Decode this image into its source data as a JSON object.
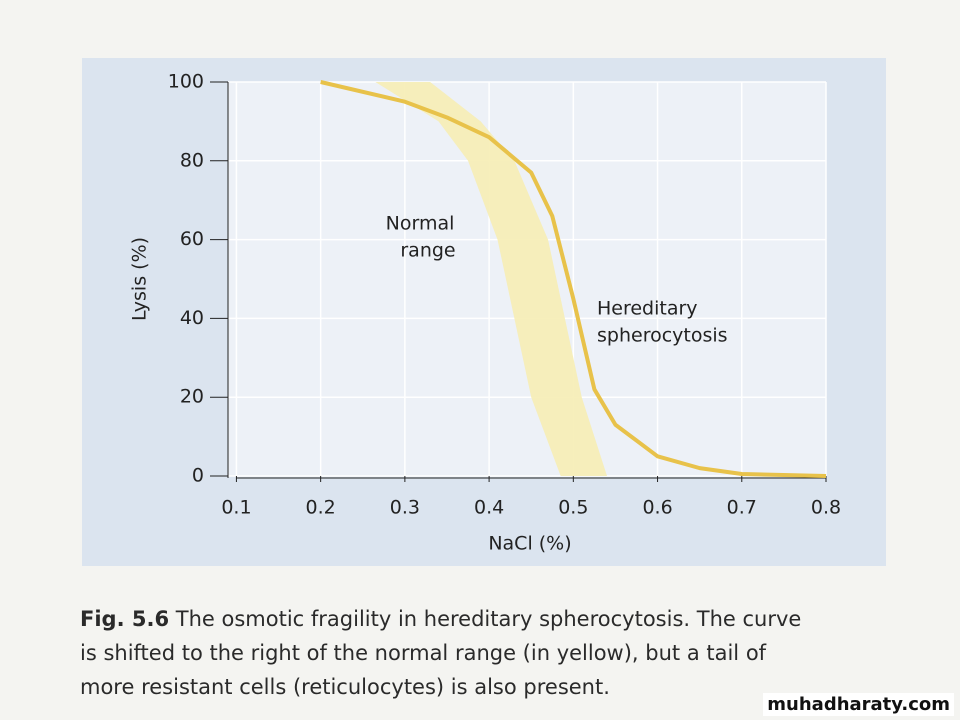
{
  "chart_data": {
    "type": "line",
    "x_label": "NaCl (%)",
    "y_label": "Lysis (%)",
    "xlim": [
      0.09,
      0.8
    ],
    "xticks": [
      0.1,
      0.2,
      0.3,
      0.4,
      0.5,
      0.6,
      0.7,
      0.8
    ],
    "ylim": [
      0,
      100
    ],
    "yticks": [
      0,
      20,
      40,
      60,
      80,
      100
    ],
    "grid": true,
    "series": [
      {
        "name": "Hereditary spherocytosis",
        "color": "#e8c24a",
        "x": [
          0.2,
          0.3,
          0.35,
          0.4,
          0.45,
          0.475,
          0.5,
          0.525,
          0.55,
          0.6,
          0.65,
          0.7,
          0.8
        ],
        "values": [
          100,
          95,
          91,
          86,
          77,
          66,
          45,
          22,
          13,
          5,
          2,
          0.5,
          0
        ]
      }
    ],
    "band": {
      "name": "Normal range",
      "color": "#f6edb4",
      "y": [
        100,
        90,
        80,
        60,
        40,
        20,
        0
      ],
      "x_left": [
        0.265,
        0.34,
        0.375,
        0.41,
        0.43,
        0.45,
        0.485
      ],
      "x_right": [
        0.33,
        0.39,
        0.43,
        0.47,
        0.49,
        0.51,
        0.54
      ]
    },
    "annotations": [
      [
        "Normal",
        "range"
      ],
      [
        "Hereditary",
        "spherocytosis"
      ]
    ]
  },
  "caption": {
    "label": "Fig. 5.6",
    "lines": [
      "The osmotic fragility in hereditary spherocytosis. The curve",
      "is shifted to the right of the normal range (in yellow), but a tail of",
      "more resistant cells (reticulocytes) is also present."
    ]
  },
  "watermark": "muhadharaty.com"
}
